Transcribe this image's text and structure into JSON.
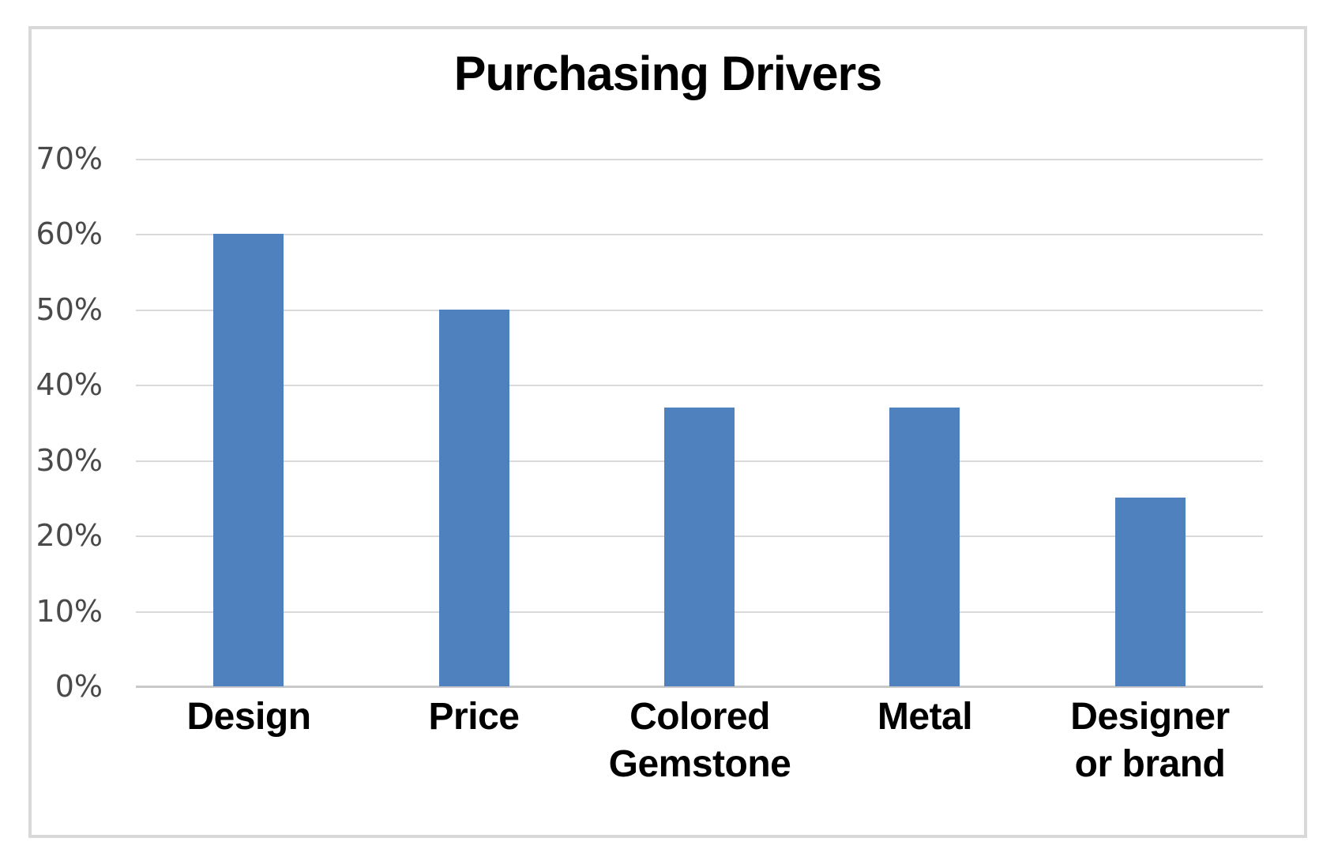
{
  "title": "Purchasing Drivers",
  "colors": {
    "bar": "#4E81BD",
    "gridline": "#D9D9D9",
    "axis_line": "#C9C9C9",
    "tick_label": "#4A4A4A",
    "title_text": "#000000",
    "category_text": "#000000",
    "frame_border": "#D9D9D9",
    "background": "#FFFFFF"
  },
  "chart_data": {
    "type": "bar",
    "title": "Purchasing Drivers",
    "categories": [
      "Design",
      "Price",
      "Colored Gemstone",
      "Metal",
      "Designer or brand"
    ],
    "category_lines": [
      [
        "Design"
      ],
      [
        "Price"
      ],
      [
        "Colored",
        "Gemstone"
      ],
      [
        "Metal"
      ],
      [
        "Designer",
        "or brand"
      ]
    ],
    "values": [
      60,
      50,
      37,
      37,
      25
    ],
    "unit": "%",
    "xlabel": "",
    "ylabel": "",
    "ylim": [
      0,
      70
    ],
    "ytick_step": 10,
    "ytick_labels": [
      "0%",
      "10%",
      "20%",
      "30%",
      "40%",
      "50%",
      "60%",
      "70%"
    ],
    "grid": true,
    "legend": false
  }
}
